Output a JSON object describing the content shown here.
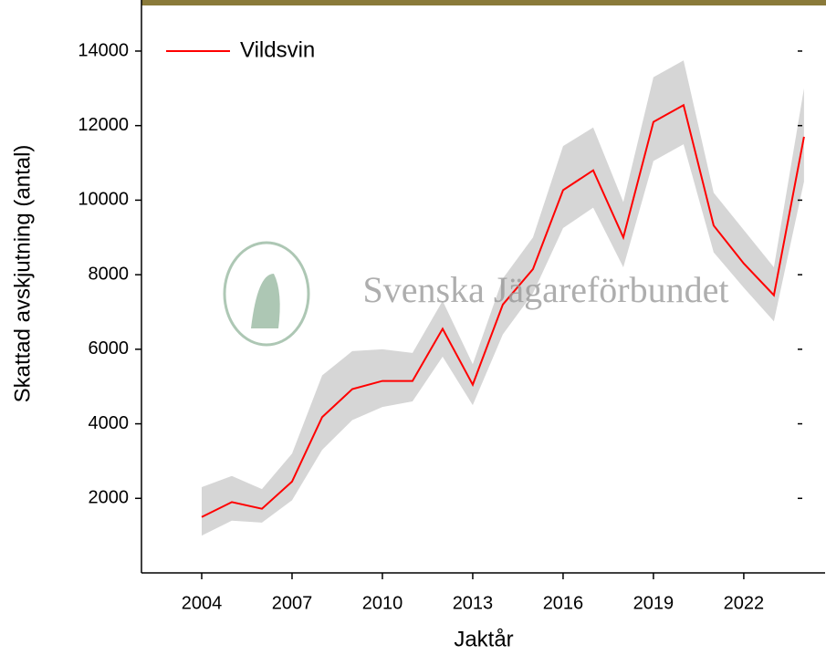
{
  "chart_data": {
    "type": "line",
    "watermark": "Svenska Jägareförbundet",
    "xlabel": "Jaktår",
    "ylabel": "Skattad avskjutning (antal)",
    "x": [
      2004,
      2005,
      2006,
      2007,
      2008,
      2009,
      2010,
      2011,
      2012,
      2013,
      2014,
      2015,
      2016,
      2017,
      2018,
      2019,
      2020,
      2021,
      2022,
      2023,
      2024
    ],
    "series": [
      {
        "name": "Vildsvin",
        "color": "#ff0000",
        "band_color": "#d6d6d6",
        "values": [
          1500,
          1900,
          1720,
          2450,
          4180,
          4930,
          5150,
          5150,
          6550,
          5050,
          7200,
          8150,
          10270,
          10800,
          9000,
          12100,
          12550,
          9320,
          8300,
          7450,
          11700
        ],
        "lower": [
          1000,
          1400,
          1350,
          1950,
          3300,
          4100,
          4450,
          4600,
          5800,
          4500,
          6400,
          7500,
          9250,
          9800,
          8200,
          11050,
          11500,
          8600,
          7650,
          6750,
          10500
        ],
        "upper": [
          2300,
          2600,
          2250,
          3200,
          5300,
          5950,
          6000,
          5900,
          7300,
          5600,
          7900,
          9000,
          11450,
          11950,
          9950,
          13300,
          13750,
          10200,
          9200,
          8200,
          13000
        ]
      }
    ],
    "xlim": [
      2002,
      2024.7
    ],
    "xticks": [
      2004,
      2007,
      2010,
      2013,
      2016,
      2019,
      2022
    ],
    "ylim": [
      0,
      15370
    ],
    "yticks": [
      2000,
      4000,
      6000,
      8000,
      10000,
      12000,
      14000
    ],
    "legend": "upper left"
  }
}
